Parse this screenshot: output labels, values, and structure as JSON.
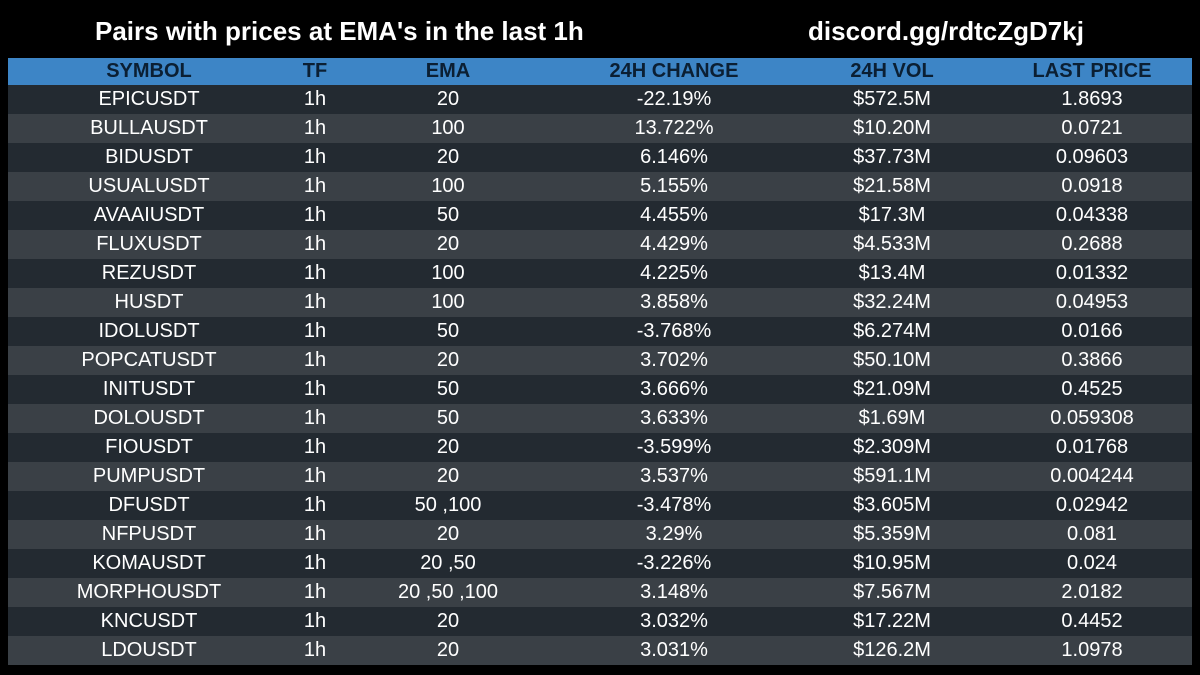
{
  "header": {
    "title": "Pairs with prices at EMA's in the last 1h",
    "invite": "discord.gg/rdtcZgD7kj"
  },
  "colors": {
    "background": "#000000",
    "header_row": "#3d85c6",
    "row_dark": "#232a31",
    "row_light": "#3a4046",
    "text": "#ffffff"
  },
  "table": {
    "columns": [
      "SYMBOL",
      "TF",
      "EMA",
      "24H CHANGE",
      "24H VOL",
      "LAST PRICE"
    ],
    "rows": [
      [
        "EPICUSDT",
        "1h",
        "20",
        "-22.19%",
        "$572.5M",
        "1.8693"
      ],
      [
        "BULLAUSDT",
        "1h",
        "100",
        "13.722%",
        "$10.20M",
        "0.0721"
      ],
      [
        "BIDUSDT",
        "1h",
        "20",
        "6.146%",
        "$37.73M",
        "0.09603"
      ],
      [
        "USUALUSDT",
        "1h",
        "100",
        "5.155%",
        "$21.58M",
        "0.0918"
      ],
      [
        "AVAAIUSDT",
        "1h",
        "50",
        "4.455%",
        "$17.3M",
        "0.04338"
      ],
      [
        "FLUXUSDT",
        "1h",
        "20",
        "4.429%",
        "$4.533M",
        "0.2688"
      ],
      [
        "REZUSDT",
        "1h",
        "100",
        "4.225%",
        "$13.4M",
        "0.01332"
      ],
      [
        "HUSDT",
        "1h",
        "100",
        "3.858%",
        "$32.24M",
        "0.04953"
      ],
      [
        "IDOLUSDT",
        "1h",
        "50",
        "-3.768%",
        "$6.274M",
        "0.0166"
      ],
      [
        "POPCATUSDT",
        "1h",
        "20",
        "3.702%",
        "$50.10M",
        "0.3866"
      ],
      [
        "INITUSDT",
        "1h",
        "50",
        "3.666%",
        "$21.09M",
        "0.4525"
      ],
      [
        "DOLOUSDT",
        "1h",
        "50",
        "3.633%",
        "$1.69M",
        "0.059308"
      ],
      [
        "FIOUSDT",
        "1h",
        "20",
        "-3.599%",
        "$2.309M",
        "0.01768"
      ],
      [
        "PUMPUSDT",
        "1h",
        "20",
        "3.537%",
        "$591.1M",
        "0.004244"
      ],
      [
        "DFUSDT",
        "1h",
        "50 ,100",
        "-3.478%",
        "$3.605M",
        "0.02942"
      ],
      [
        "NFPUSDT",
        "1h",
        "20",
        "3.29%",
        "$5.359M",
        "0.081"
      ],
      [
        "KOMAUSDT",
        "1h",
        "20 ,50",
        "-3.226%",
        "$10.95M",
        "0.024"
      ],
      [
        "MORPHOUSDT",
        "1h",
        "20 ,50 ,100",
        "3.148%",
        "$7.567M",
        "2.0182"
      ],
      [
        "KNCUSDT",
        "1h",
        "20",
        "3.032%",
        "$17.22M",
        "0.4452"
      ],
      [
        "LDOUSDT",
        "1h",
        "20",
        "3.031%",
        "$126.2M",
        "1.0978"
      ]
    ]
  }
}
